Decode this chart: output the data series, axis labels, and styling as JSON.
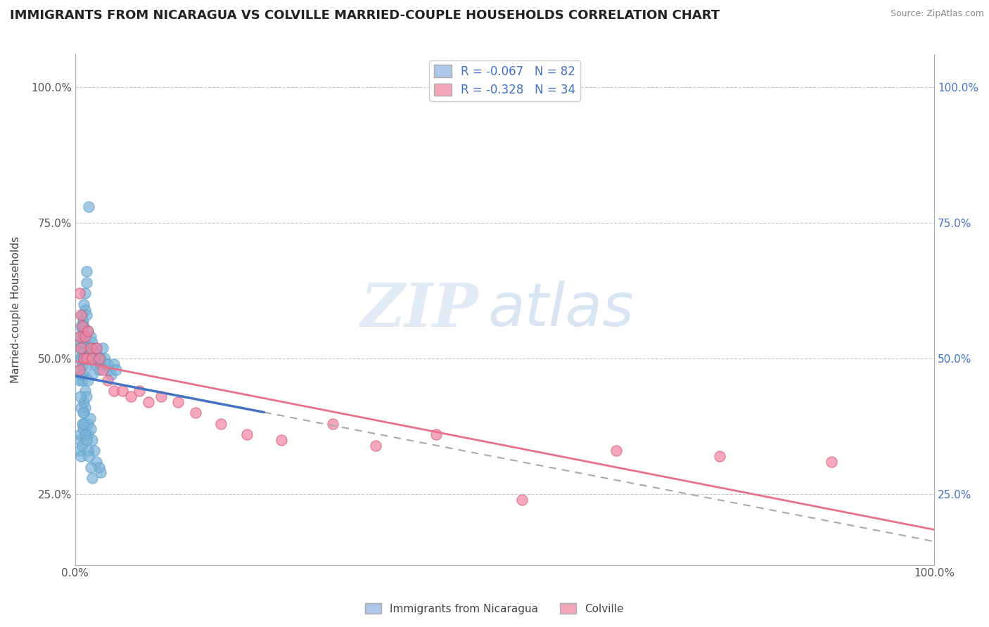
{
  "title": "IMMIGRANTS FROM NICARAGUA VS COLVILLE MARRIED-COUPLE HOUSEHOLDS CORRELATION CHART",
  "source": "Source: ZipAtlas.com",
  "ylabel": "Married-couple Households",
  "legend1_label": "R = -0.067   N = 82",
  "legend2_label": "R = -0.328   N = 34",
  "legend1_color": "#aec6e8",
  "legend2_color": "#f4a7b9",
  "scatter1_color": "#7ab3d9",
  "scatter2_color": "#f484a0",
  "line1_color": "#4472c4",
  "line2_color": "#e8708a",
  "watermark_zip": "ZIP",
  "watermark_atlas": "atlas",
  "ytick_vals": [
    0.25,
    0.5,
    0.75,
    1.0
  ],
  "ytick_labels_left": [
    "25.0%",
    "50.0%",
    "75.0%",
    "100.0%"
  ],
  "ytick_labels_right": [
    "25.0%",
    "50.0%",
    "75.0%",
    "100.0%"
  ],
  "blue_x": [
    0.005,
    0.005,
    0.005,
    0.005,
    0.005,
    0.007,
    0.007,
    0.007,
    0.007,
    0.008,
    0.008,
    0.008,
    0.008,
    0.008,
    0.009,
    0.009,
    0.009,
    0.01,
    0.01,
    0.01,
    0.01,
    0.01,
    0.012,
    0.012,
    0.013,
    0.013,
    0.013,
    0.015,
    0.015,
    0.015,
    0.015,
    0.018,
    0.018,
    0.02,
    0.02,
    0.02,
    0.022,
    0.023,
    0.025,
    0.027,
    0.028,
    0.03,
    0.03,
    0.032,
    0.035,
    0.038,
    0.04,
    0.042,
    0.045,
    0.048,
    0.005,
    0.005,
    0.006,
    0.007,
    0.008,
    0.008,
    0.009,
    0.01,
    0.01,
    0.012,
    0.012,
    0.013,
    0.015,
    0.015,
    0.017,
    0.018,
    0.02,
    0.022,
    0.025,
    0.028,
    0.03,
    0.016,
    0.006,
    0.007,
    0.009,
    0.01,
    0.012,
    0.013,
    0.015,
    0.016,
    0.018,
    0.02
  ],
  "blue_y": [
    0.5,
    0.52,
    0.54,
    0.48,
    0.46,
    0.56,
    0.53,
    0.5,
    0.47,
    0.58,
    0.55,
    0.52,
    0.49,
    0.46,
    0.57,
    0.54,
    0.51,
    0.6,
    0.56,
    0.53,
    0.5,
    0.47,
    0.62,
    0.59,
    0.64,
    0.66,
    0.58,
    0.55,
    0.52,
    0.49,
    0.46,
    0.54,
    0.51,
    0.53,
    0.5,
    0.47,
    0.52,
    0.49,
    0.51,
    0.5,
    0.48,
    0.5,
    0.49,
    0.52,
    0.5,
    0.49,
    0.48,
    0.47,
    0.49,
    0.48,
    0.35,
    0.33,
    0.36,
    0.32,
    0.38,
    0.34,
    0.37,
    0.4,
    0.42,
    0.44,
    0.41,
    0.43,
    0.38,
    0.36,
    0.39,
    0.37,
    0.35,
    0.33,
    0.31,
    0.3,
    0.29,
    0.78,
    0.43,
    0.41,
    0.4,
    0.38,
    0.36,
    0.35,
    0.33,
    0.32,
    0.3,
    0.28
  ],
  "pink_x": [
    0.005,
    0.005,
    0.005,
    0.007,
    0.007,
    0.008,
    0.01,
    0.012,
    0.013,
    0.015,
    0.018,
    0.02,
    0.025,
    0.028,
    0.032,
    0.038,
    0.045,
    0.055,
    0.065,
    0.075,
    0.085,
    0.1,
    0.12,
    0.14,
    0.17,
    0.2,
    0.24,
    0.3,
    0.35,
    0.42,
    0.52,
    0.63,
    0.75,
    0.88
  ],
  "pink_y": [
    0.62,
    0.54,
    0.48,
    0.58,
    0.52,
    0.56,
    0.5,
    0.54,
    0.5,
    0.55,
    0.52,
    0.5,
    0.52,
    0.5,
    0.48,
    0.46,
    0.44,
    0.44,
    0.43,
    0.44,
    0.42,
    0.43,
    0.42,
    0.4,
    0.38,
    0.36,
    0.35,
    0.38,
    0.34,
    0.36,
    0.24,
    0.33,
    0.32,
    0.31
  ],
  "xmin": 0.0,
  "xmax": 1.0,
  "ymin": 0.12,
  "ymax": 1.06
}
